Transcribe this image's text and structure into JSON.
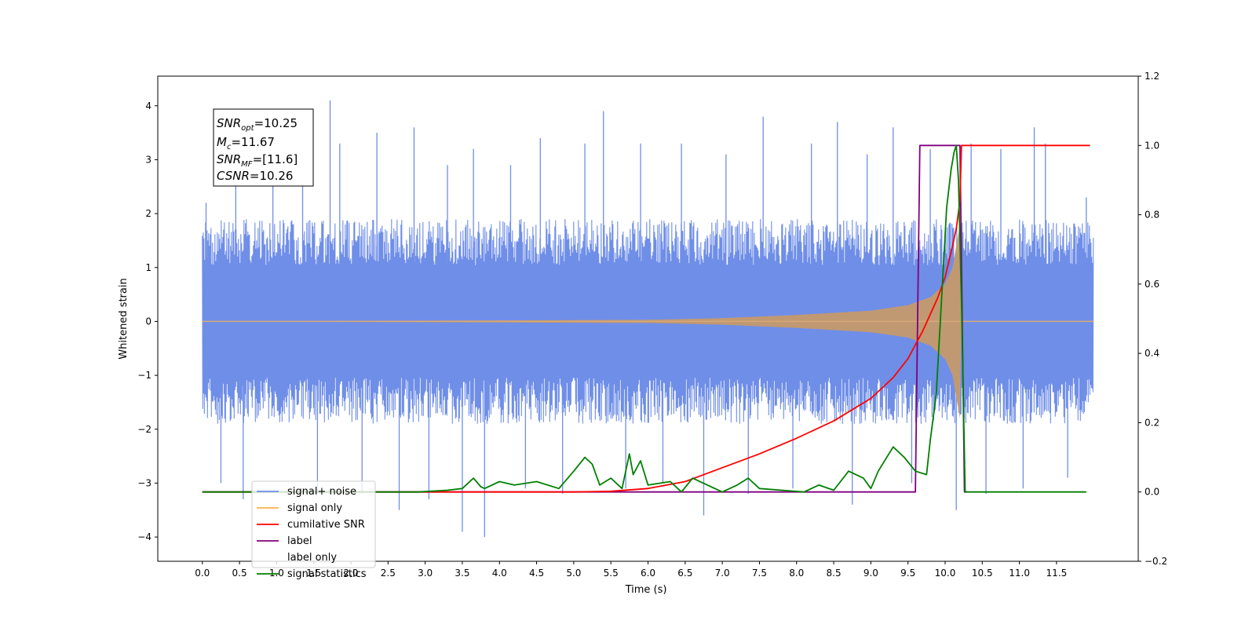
{
  "chart_data": {
    "type": "line",
    "xlabel": "Time (s)",
    "ylabel": "Whitened strain",
    "xlim": [
      -0.6,
      12.6
    ],
    "ylim": [
      -4.45,
      4.55
    ],
    "y2lim": [
      -0.2,
      1.2
    ],
    "x_ticks": [
      0.0,
      0.5,
      1.0,
      1.5,
      2.0,
      2.5,
      3.0,
      3.5,
      4.0,
      4.5,
      5.0,
      5.5,
      6.0,
      6.5,
      7.0,
      7.5,
      8.0,
      8.5,
      9.0,
      9.5,
      10.0,
      10.5,
      11.0,
      11.5
    ],
    "y_ticks": [
      -4,
      -3,
      -2,
      -1,
      0,
      1,
      2,
      3,
      4
    ],
    "y2_ticks": [
      -0.2,
      0.0,
      0.2,
      0.4,
      0.6,
      0.8,
      1.0,
      1.2
    ],
    "grid": false,
    "legend_location": "lower-left",
    "annotation": {
      "snr_opt": "SNR<sub>opt</sub>=10.25",
      "mc": "M<sub>c</sub>=11.67",
      "snr_mf": "SNR<sub>MF</sub>=[11.6]",
      "csnr": "CSNR=10.26"
    },
    "annotation_parts": {
      "snr_opt_main": "SNR",
      "snr_opt_sub": "opt",
      "snr_opt_val": "=10.25",
      "mc_main": "M",
      "mc_sub": "c",
      "mc_val": "=11.67",
      "snr_mf_main": "SNR",
      "snr_mf_sub": "MF",
      "snr_mf_val": "=[11.6]",
      "csnr_main": "CSNR",
      "csnr_val": "=10.26"
    },
    "series": [
      {
        "name": "signal+ noise",
        "color": "#6f8ee8",
        "axis": "left",
        "x_range": [
          0.0,
          12.0
        ],
        "typical_band": [
          -1.9,
          1.9
        ],
        "peak_points": [
          [
            0.05,
            2.2
          ],
          [
            0.25,
            -3.0
          ],
          [
            0.45,
            3.1
          ],
          [
            0.55,
            -3.3
          ],
          [
            0.95,
            3.6
          ],
          [
            1.35,
            3.5
          ],
          [
            1.55,
            -3.2
          ],
          [
            1.72,
            4.1
          ],
          [
            1.85,
            3.3
          ],
          [
            2.15,
            -3.2
          ],
          [
            2.35,
            3.5
          ],
          [
            2.65,
            -3.5
          ],
          [
            2.85,
            3.6
          ],
          [
            3.05,
            -3.3
          ],
          [
            3.3,
            2.9
          ],
          [
            3.5,
            -3.9
          ],
          [
            3.65,
            3.2
          ],
          [
            3.8,
            -4.0
          ],
          [
            4.15,
            2.9
          ],
          [
            4.35,
            -3.1
          ],
          [
            4.55,
            3.4
          ],
          [
            4.85,
            -3.2
          ],
          [
            5.15,
            3.3
          ],
          [
            5.4,
            3.9
          ],
          [
            5.7,
            -3.1
          ],
          [
            5.9,
            3.3
          ],
          [
            6.2,
            -3.0
          ],
          [
            6.45,
            3.3
          ],
          [
            6.75,
            -3.6
          ],
          [
            7.05,
            3.1
          ],
          [
            7.35,
            -3.2
          ],
          [
            7.55,
            3.8
          ],
          [
            7.95,
            -3.1
          ],
          [
            8.2,
            3.3
          ],
          [
            8.55,
            3.7
          ],
          [
            8.75,
            -3.4
          ],
          [
            8.95,
            3.1
          ],
          [
            9.3,
            3.6
          ],
          [
            9.55,
            -3.0
          ],
          [
            9.8,
            3.2
          ],
          [
            10.15,
            -3.5
          ],
          [
            10.35,
            3.3
          ],
          [
            10.55,
            -3.2
          ],
          [
            10.75,
            3.2
          ],
          [
            11.05,
            -3.1
          ],
          [
            11.2,
            3.6
          ],
          [
            11.35,
            3.3
          ],
          [
            11.65,
            -2.9
          ],
          [
            11.9,
            2.3
          ]
        ]
      },
      {
        "name": "signal only",
        "color": "#ffb347",
        "axis": "left",
        "description_envelope_x": [
          0.0,
          6.0,
          7.0,
          8.0,
          9.0,
          9.5,
          9.8,
          10.0,
          10.1,
          10.15,
          10.2,
          10.22
        ],
        "description_envelope_y": [
          0.0,
          0.03,
          0.06,
          0.12,
          0.2,
          0.3,
          0.45,
          0.7,
          1.0,
          1.4,
          1.8,
          0.0
        ]
      },
      {
        "name": "cumilative SNR",
        "color": "#ff0000",
        "axis": "right",
        "x": [
          0.0,
          5.0,
          5.5,
          6.0,
          6.5,
          7.0,
          7.5,
          8.0,
          8.5,
          9.0,
          9.3,
          9.5,
          9.7,
          9.9,
          10.0,
          10.1,
          10.15,
          10.2,
          10.22,
          10.25,
          11.95
        ],
        "y": [
          0.0,
          0.0,
          0.002,
          0.01,
          0.03,
          0.07,
          0.11,
          0.155,
          0.205,
          0.27,
          0.33,
          0.385,
          0.465,
          0.56,
          0.62,
          0.71,
          0.76,
          0.84,
          1.0,
          1.0,
          1.0
        ]
      },
      {
        "name": "label",
        "color": "#800080",
        "axis": "right",
        "x": [
          0.0,
          9.6,
          9.66,
          10.18,
          10.2,
          10.26,
          10.3
        ],
        "y": [
          0.0,
          0.0,
          1.0,
          1.0,
          1.0,
          0.0,
          0.0
        ]
      },
      {
        "name": "label only",
        "color": "#d8d8d8",
        "axis": "right",
        "x": [],
        "y": []
      },
      {
        "name": "signal statistics",
        "color": "#008000",
        "axis": "right",
        "x": [
          0.0,
          2.9,
          3.3,
          3.5,
          3.65,
          3.75,
          3.8,
          4.0,
          4.2,
          4.5,
          4.8,
          5.0,
          5.15,
          5.25,
          5.35,
          5.5,
          5.65,
          5.75,
          5.8,
          5.9,
          6.0,
          6.3,
          6.45,
          6.6,
          6.8,
          7.0,
          7.2,
          7.35,
          7.5,
          7.8,
          8.1,
          8.3,
          8.5,
          8.7,
          8.9,
          9.0,
          9.1,
          9.3,
          9.45,
          9.6,
          9.75,
          9.8,
          9.88,
          9.95,
          10.02,
          10.08,
          10.12,
          10.15,
          10.18,
          10.22,
          10.27,
          10.35,
          11.9
        ],
        "y": [
          0.0,
          0.0,
          0.005,
          0.01,
          0.04,
          0.015,
          0.01,
          0.03,
          0.02,
          0.03,
          0.01,
          0.06,
          0.1,
          0.08,
          0.02,
          0.04,
          0.01,
          0.11,
          0.05,
          0.09,
          0.02,
          0.03,
          0.0,
          0.04,
          0.02,
          0.0,
          0.02,
          0.04,
          0.01,
          0.005,
          0.0,
          0.02,
          0.005,
          0.06,
          0.04,
          0.01,
          0.06,
          0.13,
          0.1,
          0.06,
          0.05,
          0.15,
          0.28,
          0.55,
          0.82,
          0.93,
          0.98,
          1.0,
          0.9,
          0.55,
          0.0,
          0.0,
          0.0
        ]
      }
    ]
  }
}
